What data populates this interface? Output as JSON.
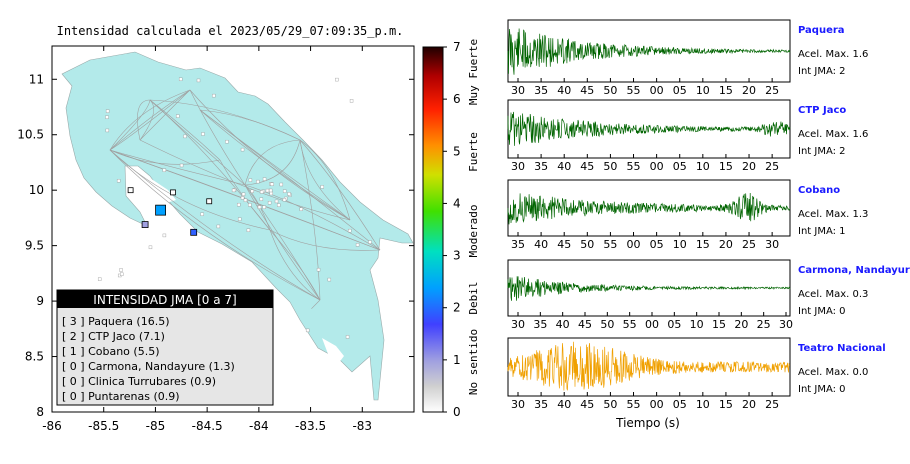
{
  "map": {
    "title": "Intensidad calculada el 2023/05/29_07:09:35_p.m.",
    "x_ticks": [
      "-86",
      "-85.5",
      "-85",
      "-84.5",
      "-84",
      "-83.5",
      "-83"
    ],
    "y_ticks": [
      "11",
      "10.5",
      "10",
      "9.5",
      "9",
      "8.5",
      "8"
    ],
    "xlim": [
      -86,
      -82.5
    ],
    "ylim": [
      8,
      11.3
    ],
    "land_color": "#b3eaea",
    "legend": {
      "header": "INTENSIDAD JMA [0 a 7]",
      "items": [
        {
          "label": "[ 3 ] Paquera (16.5)"
        },
        {
          "label": "[ 2 ] CTP Jaco (7.1)"
        },
        {
          "label": "[ 1 ] Cobano (5.5)"
        },
        {
          "label": "[ 0 ] Carmona, Nandayure (1.3)"
        },
        {
          "label": "[ 0 ] Clinica Turrubares (0.9)"
        },
        {
          "label": "[ 0 ] Puntarenas (0.9)"
        }
      ]
    }
  },
  "colorbar": {
    "ticks": [
      "0",
      "1",
      "2",
      "3",
      "4",
      "5",
      "6",
      "7"
    ],
    "labels": [
      "No sentido",
      "Debil",
      "Moderado",
      "Fuerte",
      "Muy Fuerte"
    ],
    "range": [
      0,
      7
    ]
  },
  "seismograms": {
    "xlabel": "Tiempo (s)",
    "stations": [
      {
        "name": "Paquera",
        "accel": "Acel. Max. 1.6",
        "jma": "Int JMA: 2",
        "color": "#006400",
        "ticks": [
          "30",
          "35",
          "40",
          "45",
          "50",
          "55",
          "00",
          "05",
          "10",
          "15",
          "20",
          "25"
        ]
      },
      {
        "name": "CTP Jaco",
        "accel": "Acel. Max. 1.6",
        "jma": "Int JMA: 2",
        "color": "#006400",
        "ticks": [
          "30",
          "35",
          "40",
          "45",
          "50",
          "55",
          "00",
          "05",
          "10",
          "15",
          "20",
          "25"
        ]
      },
      {
        "name": "Cobano",
        "accel": "Acel. Max. 1.3",
        "jma": "Int JMA: 1",
        "color": "#006400",
        "ticks": [
          "35",
          "40",
          "45",
          "50",
          "55",
          "00",
          "05",
          "10",
          "15",
          "20",
          "25",
          "30"
        ]
      },
      {
        "name": "Carmona, Nandayure",
        "accel": "Acel. Max. 0.3",
        "jma": "Int JMA: 0",
        "color": "#006400",
        "ticks": [
          "30",
          "35",
          "40",
          "45",
          "50",
          "55",
          "00",
          "05",
          "10",
          "15",
          "20",
          "25",
          "30"
        ]
      },
      {
        "name": "Teatro Nacional",
        "accel": "Acel. Max. 0.0",
        "jma": "Int JMA: 0",
        "color": "#f0a000",
        "ticks": [
          "30",
          "35",
          "40",
          "45",
          "50",
          "55",
          "00",
          "05",
          "10",
          "15",
          "20",
          "25"
        ]
      }
    ]
  },
  "chart_data": [
    {
      "type": "scatter",
      "title": "Intensidad calculada el 2023/05/29_07:09:35_p.m.",
      "xlabel": "",
      "ylabel": "",
      "xlim": [
        -86,
        -82.5
      ],
      "ylim": [
        8,
        11.3
      ],
      "points": [
        {
          "name": "Paquera",
          "x": -84.95,
          "y": 9.82,
          "intensity": 3
        },
        {
          "name": "CTP Jaco",
          "x": -84.63,
          "y": 9.62,
          "intensity": 2
        },
        {
          "name": "Cobano",
          "x": -85.1,
          "y": 9.69,
          "intensity": 1
        },
        {
          "name": "Carmona, Nandayure",
          "x": -85.24,
          "y": 10.0,
          "intensity": 0
        },
        {
          "name": "Clinica Turrubares",
          "x": -84.48,
          "y": 9.9,
          "intensity": 0
        },
        {
          "name": "Puntarenas",
          "x": -84.83,
          "y": 9.98,
          "intensity": 0
        }
      ]
    },
    {
      "type": "line",
      "title": "",
      "xlabel": "Tiempo (s)",
      "series": [
        {
          "name": "Paquera",
          "peak_accel": 1.6,
          "jma": 2
        },
        {
          "name": "CTP Jaco",
          "peak_accel": 1.6,
          "jma": 2
        },
        {
          "name": "Cobano",
          "peak_accel": 1.3,
          "jma": 1
        },
        {
          "name": "Carmona, Nandayure",
          "peak_accel": 0.3,
          "jma": 0
        },
        {
          "name": "Teatro Nacional",
          "peak_accel": 0.0,
          "jma": 0
        }
      ]
    }
  ]
}
